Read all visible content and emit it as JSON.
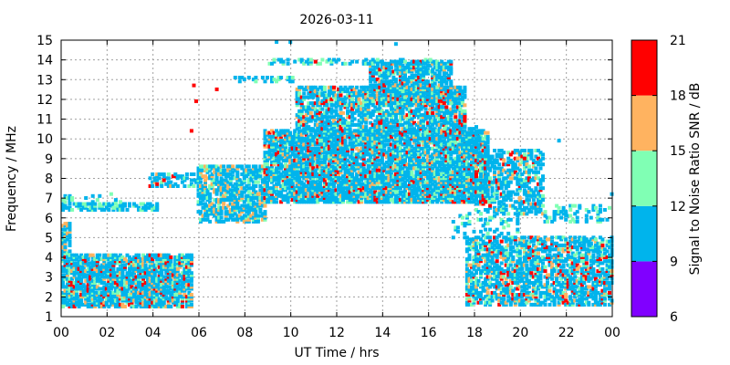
{
  "chart_data": {
    "type": "heatmap",
    "title": "2026-03-11",
    "xlabel": "UT Time / hrs",
    "ylabel": "Frequency / MHz",
    "xlim": [
      0,
      24
    ],
    "ylim": [
      1,
      15
    ],
    "xticks": [
      "00",
      "02",
      "04",
      "06",
      "08",
      "10",
      "12",
      "14",
      "16",
      "18",
      "20",
      "22",
      "00"
    ],
    "yticks": [
      "1",
      "2",
      "3",
      "4",
      "5",
      "6",
      "7",
      "8",
      "9",
      "10",
      "11",
      "12",
      "13",
      "14",
      "15"
    ],
    "grid": true,
    "colorbar": {
      "label": "Signal to Noise Ratio SNR / dB",
      "range": [
        6,
        21
      ],
      "ticks": [
        "6",
        "9",
        "12",
        "15",
        "18",
        "21"
      ],
      "bands": [
        {
          "from": 6,
          "to": 9,
          "color": "#8000ff"
        },
        {
          "from": 9,
          "to": 12,
          "color": "#00b4ec"
        },
        {
          "from": 12,
          "to": 15,
          "color": "#80ffb4"
        },
        {
          "from": 15,
          "to": 18,
          "color": "#ffb360"
        },
        {
          "from": 18,
          "to": 21,
          "color": "#ff0000"
        }
      ]
    },
    "regions": [
      {
        "t": [
          0.0,
          5.6
        ],
        "f": [
          1.5,
          4.2
        ],
        "density": 0.75,
        "snr": [
          10,
          20
        ]
      },
      {
        "t": [
          0.0,
          0.4
        ],
        "f": [
          4.2,
          5.7
        ],
        "density": 0.6,
        "snr": [
          10,
          15
        ]
      },
      {
        "t": [
          0.0,
          4.2
        ],
        "f": [
          6.4,
          6.7
        ],
        "density": 0.55,
        "snr": [
          10,
          12
        ]
      },
      {
        "t": [
          0.0,
          2.8
        ],
        "f": [
          6.8,
          7.2
        ],
        "density": 0.15,
        "snr": [
          10,
          12
        ]
      },
      {
        "t": [
          3.8,
          5.8
        ],
        "f": [
          7.6,
          8.2
        ],
        "density": 0.4,
        "snr": [
          10,
          19
        ]
      },
      {
        "t": [
          5.9,
          8.8
        ],
        "f": [
          5.8,
          8.6
        ],
        "density": 0.6,
        "snr": [
          10,
          15
        ]
      },
      {
        "t": [
          8.8,
          18.6
        ],
        "f": [
          6.8,
          10.4
        ],
        "density": 0.75,
        "snr": [
          10,
          20
        ]
      },
      {
        "t": [
          10.2,
          17.6
        ],
        "f": [
          10.4,
          12.6
        ],
        "density": 0.6,
        "snr": [
          10,
          20
        ]
      },
      {
        "t": [
          13.4,
          17.0
        ],
        "f": [
          11.8,
          13.9
        ],
        "density": 0.65,
        "snr": [
          10,
          21
        ]
      },
      {
        "t": [
          9.0,
          16.0
        ],
        "f": [
          13.8,
          14.1
        ],
        "density": 0.35,
        "snr": [
          10,
          12
        ]
      },
      {
        "t": [
          7.4,
          10.0
        ],
        "f": [
          12.9,
          13.2
        ],
        "density": 0.3,
        "snr": [
          10,
          12
        ]
      },
      {
        "t": [
          17.0,
          18.2
        ],
        "f": [
          9.6,
          10.6
        ],
        "density": 0.4,
        "snr": [
          10,
          20
        ]
      },
      {
        "t": [
          18.0,
          21.0
        ],
        "f": [
          6.2,
          9.4
        ],
        "density": 0.5,
        "snr": [
          10,
          20
        ]
      },
      {
        "t": [
          17.0,
          20.0
        ],
        "f": [
          5.0,
          6.2
        ],
        "density": 0.12,
        "snr": [
          10,
          12
        ]
      },
      {
        "t": [
          17.6,
          24.0
        ],
        "f": [
          1.6,
          5.0
        ],
        "density": 0.55,
        "snr": [
          10,
          20
        ]
      },
      {
        "t": [
          21.0,
          24.0
        ],
        "f": [
          5.8,
          6.6
        ],
        "density": 0.2,
        "snr": [
          10,
          12
        ]
      }
    ],
    "points": [
      {
        "t": 5.7,
        "f": 12.8,
        "snr": 20
      },
      {
        "t": 5.8,
        "f": 12.0,
        "snr": 20
      },
      {
        "t": 5.6,
        "f": 10.5,
        "snr": 20
      },
      {
        "t": 6.7,
        "f": 12.6,
        "snr": 19
      },
      {
        "t": 9.9,
        "f": 15.0,
        "snr": 11
      },
      {
        "t": 14.5,
        "f": 14.9,
        "snr": 11
      },
      {
        "t": 9.3,
        "f": 15.0,
        "snr": 11
      },
      {
        "t": 4.4,
        "f": 8.0,
        "snr": 20
      },
      {
        "t": 20.1,
        "f": 9.1,
        "snr": 20
      },
      {
        "t": 11.0,
        "f": 14.0,
        "snr": 20
      },
      {
        "t": 21.6,
        "f": 10.0,
        "snr": 11
      },
      {
        "t": 23.9,
        "f": 7.3,
        "snr": 11
      }
    ]
  }
}
